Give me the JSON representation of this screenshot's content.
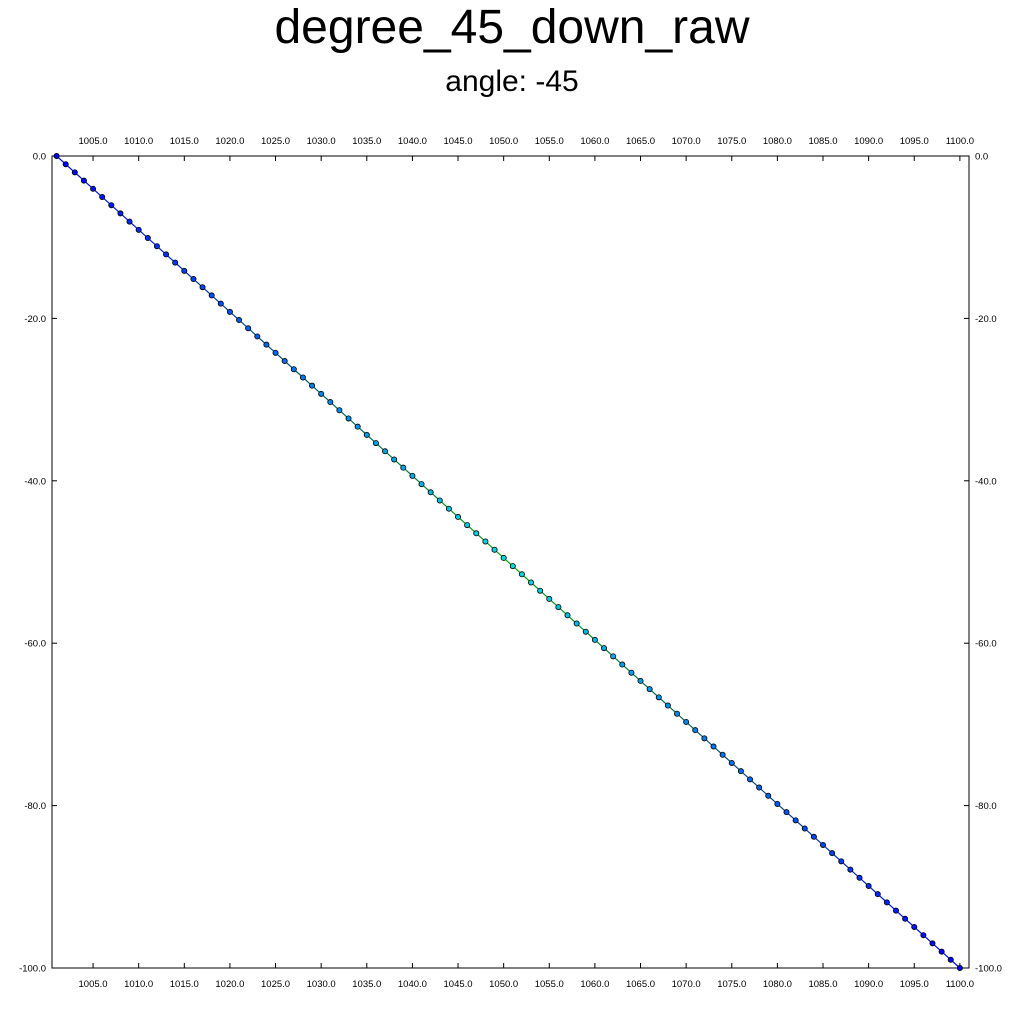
{
  "chart_data": {
    "type": "line",
    "title": "degree_45_down_raw",
    "subtitle": "angle: -45",
    "xlabel": "",
    "ylabel": "",
    "xlim": [
      1000.5,
      1101
    ],
    "ylim": [
      -100,
      0
    ],
    "x_ticks": [
      1005,
      1010,
      1015,
      1020,
      1025,
      1030,
      1035,
      1040,
      1045,
      1050,
      1055,
      1060,
      1065,
      1070,
      1075,
      1080,
      1085,
      1090,
      1095,
      1100
    ],
    "y_ticks": [
      0,
      -20,
      -40,
      -60,
      -80,
      -100
    ],
    "tick_format_decimals": 1,
    "grid": false,
    "axes_mirrored": true,
    "series": [
      {
        "x_start": 1001,
        "x_end": 1100,
        "x_step": 1,
        "y_start": 0,
        "y_step": -1.0101,
        "point_count": 100,
        "marker": "circle",
        "line_color_gradient": [
          "#0000ff",
          "#00aa00",
          "#0000ff"
        ],
        "marker_fill_gradient": [
          "#0000ff",
          "#00dddd",
          "#0000ff"
        ],
        "marker_edge_color": "#000000"
      }
    ]
  }
}
